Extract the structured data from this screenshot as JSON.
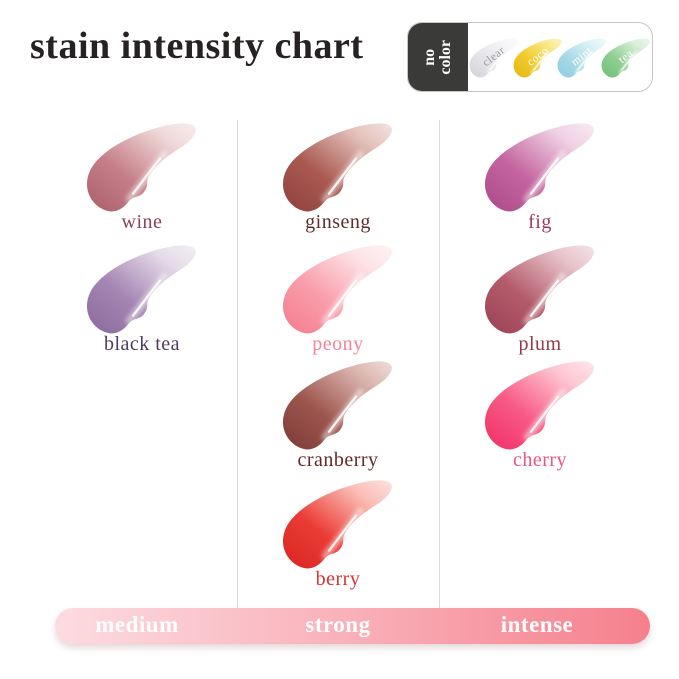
{
  "title": "stain intensity chart",
  "badge": {
    "label": "no color",
    "label_lines": [
      "no",
      "color"
    ],
    "bg": "#3a3a38",
    "swatches": [
      {
        "name": "clear",
        "main": "#e4e4e8",
        "dark": "#d2d2d9",
        "light": "#f6f6f8",
        "text_color": "#9a9aa0"
      },
      {
        "name": "coco",
        "main": "#f1ca2a",
        "dark": "#e3b714",
        "light": "#f9e98d",
        "text_color": "#ffffff"
      },
      {
        "name": "mint",
        "main": "#a9dae8",
        "dark": "#8ccddf",
        "light": "#def3f7",
        "text_color": "#ffffff"
      },
      {
        "name": "tea",
        "main": "#8fce92",
        "dark": "#70bf77",
        "light": "#d8efd9",
        "text_color": "#ffffff"
      }
    ]
  },
  "columns": [
    {
      "intensity": "medium",
      "items": [
        {
          "name": "wine",
          "main": "#c67f88",
          "dark": "#a95f6b",
          "light": "#f0d8d8",
          "label_color": "#8c4154"
        },
        {
          "name": "black tea",
          "main": "#a585b2",
          "dark": "#8a6a9a",
          "light": "#e5dbe9",
          "label_color": "#4f3b5f"
        }
      ]
    },
    {
      "intensity": "strong",
      "items": [
        {
          "name": "ginseng",
          "main": "#aa5a52",
          "dark": "#8f403d",
          "light": "#e3c2bb",
          "label_color": "#5e2d2a"
        },
        {
          "name": "peony",
          "main": "#f99dab",
          "dark": "#f47c8c",
          "light": "#fde4e6",
          "label_color": "#f0859a"
        },
        {
          "name": "cranberry",
          "main": "#9d564e",
          "dark": "#7c3b36",
          "light": "#dbb6b0",
          "label_color": "#632b27"
        },
        {
          "name": "berry",
          "main": "#ea3c35",
          "dark": "#da2421",
          "light": "#fabfb7",
          "label_color": "#d63431"
        }
      ]
    },
    {
      "intensity": "intense",
      "items": [
        {
          "name": "fig",
          "main": "#c565a0",
          "dark": "#a94a88",
          "light": "#f0d2e4",
          "label_color": "#a03a60"
        },
        {
          "name": "plum",
          "main": "#b45b6b",
          "dark": "#9a4156",
          "light": "#e7c2c9",
          "label_color": "#8e3c4b"
        },
        {
          "name": "cherry",
          "main": "#f85a85",
          "dark": "#f02e66",
          "light": "#fdc8d2",
          "label_color": "#ea5680"
        }
      ]
    }
  ],
  "intensity_bar": {
    "labels": [
      "medium",
      "strong",
      "intense"
    ],
    "gradient": [
      "#fcdce0",
      "#f9b0b9",
      "#f5808c"
    ],
    "text_color": "#ffffff"
  },
  "chart_data": {
    "type": "table",
    "title": "stain intensity chart",
    "groups": [
      {
        "intensity": "medium",
        "shades": [
          "wine",
          "black tea"
        ]
      },
      {
        "intensity": "strong",
        "shades": [
          "ginseng",
          "peony",
          "cranberry",
          "berry"
        ]
      },
      {
        "intensity": "intense",
        "shades": [
          "fig",
          "plum",
          "cherry"
        ]
      }
    ],
    "no_color_shades": [
      "clear",
      "coco",
      "mint",
      "tea"
    ],
    "layout": "three columns ordered left-to-right by increasing stain intensity; gradient legend bar at bottom"
  }
}
